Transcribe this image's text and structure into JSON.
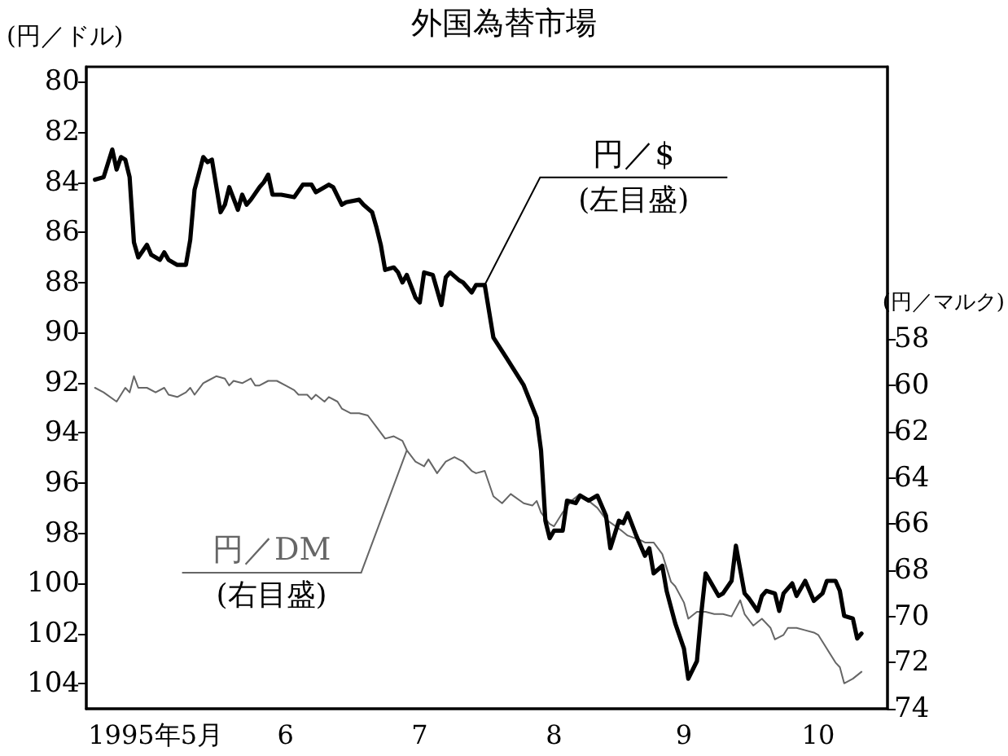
{
  "chart_data": {
    "type": "line",
    "title": "外国為替市場",
    "ylabel": "(円／ドル)",
    "y2label": "(円／マルク)",
    "xlim": [
      "1995-04-30",
      "1995-11-01"
    ],
    "xticks": [
      {
        "value": "1995-05-16",
        "label": "1995年5月"
      },
      {
        "value": "1995-06-15",
        "label": "6"
      },
      {
        "value": "1995-07-16",
        "label": "7"
      },
      {
        "value": "1995-08-16",
        "label": "8"
      },
      {
        "value": "1995-09-15",
        "label": "9"
      },
      {
        "value": "1995-10-16",
        "label": "10"
      }
    ],
    "ylim": [
      105,
      79.4
    ],
    "yticks": [
      80,
      82,
      84,
      86,
      88,
      90,
      92,
      94,
      96,
      98,
      100,
      102,
      104
    ],
    "y2lim": [
      74,
      46.2
    ],
    "y2ticks": [
      58,
      60,
      62,
      64,
      66,
      68,
      70,
      72,
      74
    ],
    "grid": false,
    "legend": false,
    "marker": "none",
    "line_style": "solid",
    "annotations": [
      {
        "text": "(左目盛)",
        "x": "1995-07-31",
        "y": 88.1
      },
      {
        "text": "(右目盛)",
        "x": "1995-07-13",
        "y": 94.7
      }
    ],
    "series": [
      {
        "name": "円／$",
        "color": "#000000",
        "axis": "y",
        "x": [
          "1995-05-02",
          "1995-05-04",
          "1995-05-06",
          "1995-05-07",
          "1995-05-08",
          "1995-05-09",
          "1995-05-10",
          "1995-05-11",
          "1995-05-12",
          "1995-05-14",
          "1995-05-15",
          "1995-05-17",
          "1995-05-18",
          "1995-05-19",
          "1995-05-21",
          "1995-05-23",
          "1995-05-24",
          "1995-05-25",
          "1995-05-27",
          "1995-05-28",
          "1995-05-29",
          "1995-05-31",
          "1995-06-01",
          "1995-06-02",
          "1995-06-04",
          "1995-06-05",
          "1995-06-06",
          "1995-06-07",
          "1995-06-09",
          "1995-06-10",
          "1995-06-11",
          "1995-06-12",
          "1995-06-14",
          "1995-06-17",
          "1995-06-19",
          "1995-06-21",
          "1995-06-22",
          "1995-06-25",
          "1995-06-26",
          "1995-06-28",
          "1995-06-29",
          "1995-07-02",
          "1995-07-03",
          "1995-07-05",
          "1995-07-06",
          "1995-07-07",
          "1995-07-08",
          "1995-07-10",
          "1995-07-11",
          "1995-07-12",
          "1995-07-13",
          "1995-07-15",
          "1995-07-16",
          "1995-07-17",
          "1995-07-19",
          "1995-07-21",
          "1995-07-22",
          "1995-07-23",
          "1995-07-25",
          "1995-07-26",
          "1995-07-28",
          "1995-07-29",
          "1995-07-31",
          "1995-08-02",
          "1995-08-05",
          "1995-08-09",
          "1995-08-12",
          "1995-08-13",
          "1995-08-14",
          "1995-08-15",
          "1995-08-16",
          "1995-08-18",
          "1995-08-19",
          "1995-08-21",
          "1995-08-22",
          "1995-08-24",
          "1995-08-26",
          "1995-08-28",
          "1995-08-29",
          "1995-08-31",
          "1995-09-01",
          "1995-09-02",
          "1995-09-04",
          "1995-09-06",
          "1995-09-07",
          "1995-09-08",
          "1995-09-10",
          "1995-09-11",
          "1995-09-13",
          "1995-09-15",
          "1995-09-16",
          "1995-09-18",
          "1995-09-19",
          "1995-09-20",
          "1995-09-21",
          "1995-09-23",
          "1995-09-24",
          "1995-09-26",
          "1995-09-27",
          "1995-09-29",
          "1995-09-30",
          "1995-10-02",
          "1995-10-03",
          "1995-10-04",
          "1995-10-06",
          "1995-10-07",
          "1995-10-08",
          "1995-10-10",
          "1995-10-11",
          "1995-10-13",
          "1995-10-15",
          "1995-10-17",
          "1995-10-18",
          "1995-10-20",
          "1995-10-21",
          "1995-10-22",
          "1995-10-24",
          "1995-10-25",
          "1995-10-26"
        ],
        "values": [
          83.9,
          83.8,
          82.7,
          83.5,
          83.0,
          83.1,
          83.8,
          86.4,
          87.0,
          86.5,
          86.9,
          87.1,
          86.8,
          87.1,
          87.3,
          87.3,
          86.3,
          84.3,
          83.0,
          83.2,
          83.1,
          85.2,
          84.9,
          84.2,
          85.1,
          84.5,
          84.9,
          84.7,
          84.2,
          84.0,
          83.7,
          84.5,
          84.5,
          84.6,
          84.1,
          84.1,
          84.4,
          84.1,
          84.2,
          84.9,
          84.8,
          84.7,
          84.9,
          85.2,
          85.8,
          86.5,
          87.5,
          87.4,
          87.6,
          88.0,
          87.7,
          88.6,
          88.8,
          87.6,
          87.7,
          88.9,
          87.8,
          87.6,
          87.9,
          88.0,
          88.4,
          88.1,
          88.1,
          90.2,
          91.0,
          92.1,
          93.4,
          94.7,
          97.5,
          98.2,
          97.9,
          97.9,
          96.7,
          96.8,
          96.5,
          96.7,
          96.5,
          97.3,
          98.6,
          97.5,
          97.6,
          97.2,
          98.1,
          98.9,
          98.6,
          99.6,
          99.3,
          100.3,
          101.6,
          102.6,
          103.8,
          103.1,
          101.2,
          99.6,
          99.9,
          100.5,
          100.4,
          99.9,
          98.5,
          100.4,
          100.6,
          101.1,
          100.5,
          100.3,
          100.4,
          101.1,
          100.4,
          100.0,
          100.5,
          99.9,
          100.7,
          100.4,
          99.9,
          99.9,
          100.3,
          101.3,
          101.4,
          102.2,
          102.0
        ]
      },
      {
        "name": "円／DM",
        "color": "#666666",
        "axis": "y2",
        "x": [
          "1995-05-02",
          "1995-05-04",
          "1995-05-07",
          "1995-05-09",
          "1995-05-10",
          "1995-05-11",
          "1995-05-12",
          "1995-05-14",
          "1995-05-16",
          "1995-05-18",
          "1995-05-19",
          "1995-05-21",
          "1995-05-23",
          "1995-05-24",
          "1995-05-25",
          "1995-05-27",
          "1995-05-28",
          "1995-05-30",
          "1995-06-01",
          "1995-06-02",
          "1995-06-03",
          "1995-06-05",
          "1995-06-07",
          "1995-06-08",
          "1995-06-09",
          "1995-06-11",
          "1995-06-13",
          "1995-06-15",
          "1995-06-17",
          "1995-06-18",
          "1995-06-20",
          "1995-06-21",
          "1995-06-22",
          "1995-06-24",
          "1995-06-25",
          "1995-06-27",
          "1995-06-28",
          "1995-06-30",
          "1995-07-02",
          "1995-07-04",
          "1995-07-06",
          "1995-07-08",
          "1995-07-10",
          "1995-07-12",
          "1995-07-13",
          "1995-07-15",
          "1995-07-17",
          "1995-07-18",
          "1995-07-20",
          "1995-07-22",
          "1995-07-24",
          "1995-07-26",
          "1995-07-28",
          "1995-07-29",
          "1995-07-31",
          "1995-08-02",
          "1995-08-04",
          "1995-08-06",
          "1995-08-09",
          "1995-08-11",
          "1995-08-12",
          "1995-08-13",
          "1995-08-15",
          "1995-08-16",
          "1995-08-18",
          "1995-08-20",
          "1995-08-22",
          "1995-08-24",
          "1995-08-26",
          "1995-08-28",
          "1995-08-31",
          "1995-09-02",
          "1995-09-05",
          "1995-09-06",
          "1995-09-08",
          "1995-09-10",
          "1995-09-12",
          "1995-09-13",
          "1995-09-15",
          "1995-09-16",
          "1995-09-18",
          "1995-09-20",
          "1995-09-22",
          "1995-09-24",
          "1995-09-26",
          "1995-09-28",
          "1995-09-29",
          "1995-10-01",
          "1995-10-03",
          "1995-10-05",
          "1995-10-06",
          "1995-10-08",
          "1995-10-09",
          "1995-10-11",
          "1995-10-13",
          "1995-10-15",
          "1995-10-16",
          "1995-10-18",
          "1995-10-20",
          "1995-10-21",
          "1995-10-22",
          "1995-10-24",
          "1995-10-26"
        ],
        "values": [
          60.1,
          60.3,
          60.7,
          60.1,
          60.3,
          59.6,
          60.1,
          60.1,
          60.3,
          60.1,
          60.4,
          60.5,
          60.3,
          60.1,
          60.4,
          59.9,
          59.8,
          59.6,
          59.7,
          60.0,
          59.8,
          59.9,
          59.7,
          60.0,
          60.0,
          59.8,
          59.8,
          60.0,
          60.2,
          60.4,
          60.4,
          60.6,
          60.4,
          60.7,
          60.5,
          60.7,
          61.0,
          61.2,
          61.2,
          61.3,
          61.8,
          62.3,
          62.2,
          62.4,
          62.8,
          63.3,
          63.5,
          63.2,
          63.8,
          63.3,
          63.1,
          63.3,
          63.7,
          63.8,
          63.7,
          64.8,
          65.1,
          64.7,
          65.1,
          65.2,
          65.0,
          65.5,
          66.0,
          66.1,
          65.5,
          65.0,
          64.7,
          65.0,
          65.3,
          65.8,
          66.2,
          66.5,
          66.7,
          66.8,
          66.8,
          67.3,
          68.5,
          68.7,
          69.4,
          70.1,
          69.8,
          69.8,
          69.9,
          69.9,
          70.0,
          69.3,
          69.9,
          70.4,
          70.1,
          70.5,
          71.0,
          70.8,
          70.5,
          70.5,
          70.6,
          70.7,
          70.8,
          71.4,
          72.0,
          72.2,
          72.9,
          72.7,
          72.4
        ]
      }
    ]
  }
}
